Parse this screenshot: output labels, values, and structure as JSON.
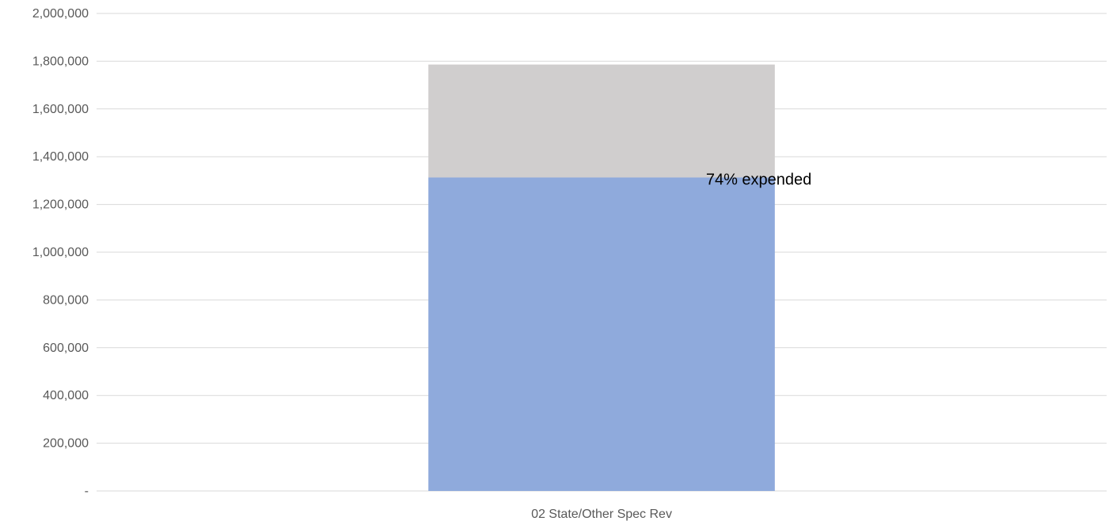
{
  "chart_data": {
    "type": "bar",
    "stacked": true,
    "categories": [
      "02 State/Other Spec Rev"
    ],
    "series": [
      {
        "values": [
          1313000
        ],
        "color": "#8faadc"
      },
      {
        "values": [
          473000
        ],
        "color": "#d0cece"
      }
    ],
    "ylim": [
      0,
      2000000
    ],
    "yticks": [
      0,
      200000,
      400000,
      600000,
      800000,
      1000000,
      1200000,
      1400000,
      1600000,
      1800000,
      2000000
    ],
    "ytick_labels": [
      "-",
      "200,000",
      "400,000",
      "600,000",
      "800,000",
      "1,000,000",
      "1,200,000",
      "1,400,000",
      "1,600,000",
      "1,800,000",
      "2,000,000"
    ],
    "annotation": "74% expended",
    "grid": true,
    "legend": "none"
  }
}
